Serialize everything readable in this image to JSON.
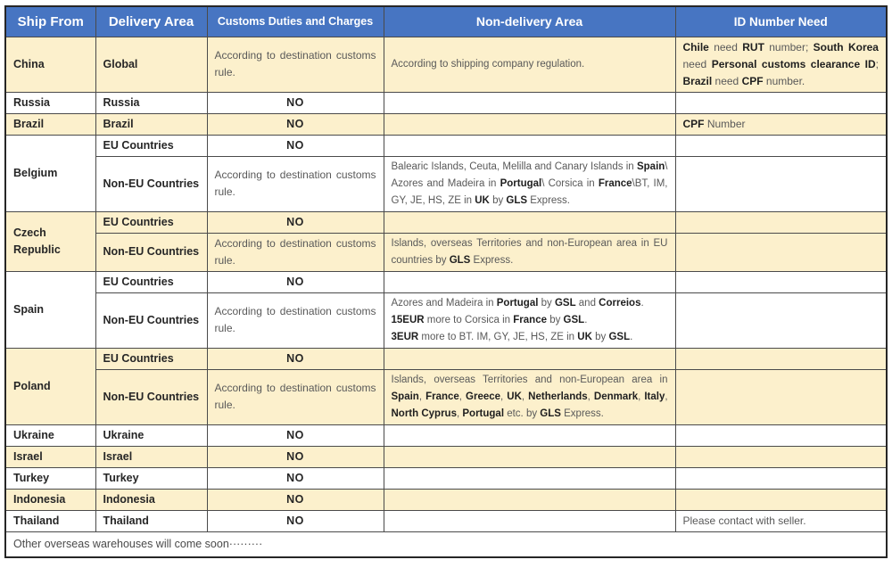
{
  "colors": {
    "header_bg": "#4775C2",
    "header_text": "#FFFFFF",
    "row_cream": "#FCF0CC",
    "row_white": "#FFFFFF",
    "border": "#4A4A4A",
    "outer_border": "#262626",
    "text_regular": "#595959",
    "text_bold": "#1F1F1F"
  },
  "table": {
    "headers": [
      "Ship From",
      "Delivery Area",
      "Customs Duties and Charges",
      "Non-delivery Area",
      "ID Number Need"
    ],
    "labels": {
      "no": "NO",
      "according": "According to destination customs rule."
    },
    "groups": [
      {
        "ship_from": "China",
        "bg": "cream",
        "rows": [
          {
            "delivery": "Global",
            "customs": "according",
            "nd_text": "According to shipping company regulation.",
            "id": [
              [
                "Chile",
                1
              ],
              [
                " need ",
                0
              ],
              [
                "RUT",
                1
              ],
              [
                " number; ",
                0
              ],
              [
                "South Korea",
                1
              ],
              [
                " need ",
                0
              ],
              [
                "Personal customs clearance ID",
                1
              ],
              [
                "; ",
                0
              ],
              [
                "Brazil",
                1
              ],
              [
                " need ",
                0
              ],
              [
                "CPF",
                1
              ],
              [
                " number.",
                0
              ]
            ]
          }
        ]
      },
      {
        "ship_from": "Russia",
        "bg": "white",
        "rows": [
          {
            "delivery": "Russia",
            "customs": "no"
          }
        ]
      },
      {
        "ship_from": "Brazil",
        "bg": "cream",
        "rows": [
          {
            "delivery": "Brazil",
            "customs": "no",
            "id": [
              [
                "CPF",
                1
              ],
              [
                " Number",
                0
              ]
            ]
          }
        ]
      },
      {
        "ship_from": "Belgium",
        "bg": "white",
        "rows": [
          {
            "delivery": "EU Countries",
            "customs": "no"
          },
          {
            "delivery": "Non-EU Countries",
            "customs": "according",
            "nd": [
              [
                "Balearic Islands, Ceuta, Melilla and Canary Islands in ",
                0
              ],
              [
                "Spain",
                1
              ],
              [
                "\\ Azores and Madeira in ",
                0
              ],
              [
                "Portugal",
                1
              ],
              [
                "\\ Corsica in ",
                0
              ],
              [
                "France",
                1
              ],
              [
                "\\BT, IM, GY, JE, HS, ZE in ",
                0
              ],
              [
                "UK",
                1
              ],
              [
                " by ",
                0
              ],
              [
                "GLS",
                1
              ],
              [
                " Express.",
                0
              ]
            ]
          }
        ]
      },
      {
        "ship_from": "Czech Republic",
        "bg": "cream",
        "rows": [
          {
            "delivery": "EU Countries",
            "customs": "no"
          },
          {
            "delivery": "Non-EU Countries",
            "customs": "according",
            "nd": [
              [
                "Islands, overseas Territories and non-European area in EU countries by ",
                0
              ],
              [
                "GLS",
                1
              ],
              [
                " Express.",
                0
              ]
            ]
          }
        ]
      },
      {
        "ship_from": "Spain",
        "bg": "white",
        "rows": [
          {
            "delivery": "EU Countries",
            "customs": "no"
          },
          {
            "delivery": "Non-EU Countries",
            "customs": "according",
            "nd_lines": [
              [
                [
                  "Azores and Madeira in ",
                  0
                ],
                [
                  "Portugal",
                  1
                ],
                [
                  " by ",
                  0
                ],
                [
                  "GSL",
                  1
                ],
                [
                  " and ",
                  0
                ],
                [
                  "Correios",
                  1
                ],
                [
                  ".",
                  0
                ]
              ],
              [
                [
                  "15EUR",
                  1
                ],
                [
                  " more to Corsica in ",
                  0
                ],
                [
                  "France",
                  1
                ],
                [
                  " by ",
                  0
                ],
                [
                  "GSL",
                  1
                ],
                [
                  ".",
                  0
                ]
              ],
              [
                [
                  "3EUR",
                  1
                ],
                [
                  " more to BT. IM, GY, JE, HS, ZE in ",
                  0
                ],
                [
                  "UK",
                  1
                ],
                [
                  " by ",
                  0
                ],
                [
                  "GSL",
                  1
                ],
                [
                  ".",
                  0
                ]
              ]
            ]
          }
        ]
      },
      {
        "ship_from": "Poland",
        "bg": "cream",
        "rows": [
          {
            "delivery": "EU Countries",
            "customs": "no"
          },
          {
            "delivery": "Non-EU Countries",
            "customs": "according",
            "nd": [
              [
                "Islands, overseas Territories and non-European area in ",
                0
              ],
              [
                "Spain",
                1
              ],
              [
                ", ",
                0
              ],
              [
                "France",
                1
              ],
              [
                ", ",
                0
              ],
              [
                "Greece",
                1
              ],
              [
                ", ",
                0
              ],
              [
                "UK",
                1
              ],
              [
                ", ",
                0
              ],
              [
                "Netherlands",
                1
              ],
              [
                ", ",
                0
              ],
              [
                "Denmark",
                1
              ],
              [
                ", ",
                0
              ],
              [
                "Italy",
                1
              ],
              [
                ", ",
                0
              ],
              [
                "North Cyprus",
                1
              ],
              [
                ", ",
                0
              ],
              [
                "Portugal",
                1
              ],
              [
                " etc. by ",
                0
              ],
              [
                "GLS",
                1
              ],
              [
                " Express.",
                0
              ]
            ]
          }
        ]
      },
      {
        "ship_from": "Ukraine",
        "bg": "white",
        "rows": [
          {
            "delivery": "Ukraine",
            "customs": "no"
          }
        ]
      },
      {
        "ship_from": "Israel",
        "bg": "cream",
        "rows": [
          {
            "delivery": "Israel",
            "customs": "no"
          }
        ]
      },
      {
        "ship_from": "Turkey",
        "bg": "white",
        "rows": [
          {
            "delivery": "Turkey",
            "customs": "no"
          }
        ]
      },
      {
        "ship_from": "Indonesia",
        "bg": "cream",
        "rows": [
          {
            "delivery": "Indonesia",
            "customs": "no"
          }
        ]
      },
      {
        "ship_from": "Thailand",
        "bg": "white",
        "rows": [
          {
            "delivery": "Thailand",
            "customs": "no",
            "id": [
              [
                "Please contact with seller.",
                0
              ]
            ]
          }
        ]
      }
    ],
    "footer": "Other overseas warehouses will come soon·········"
  }
}
